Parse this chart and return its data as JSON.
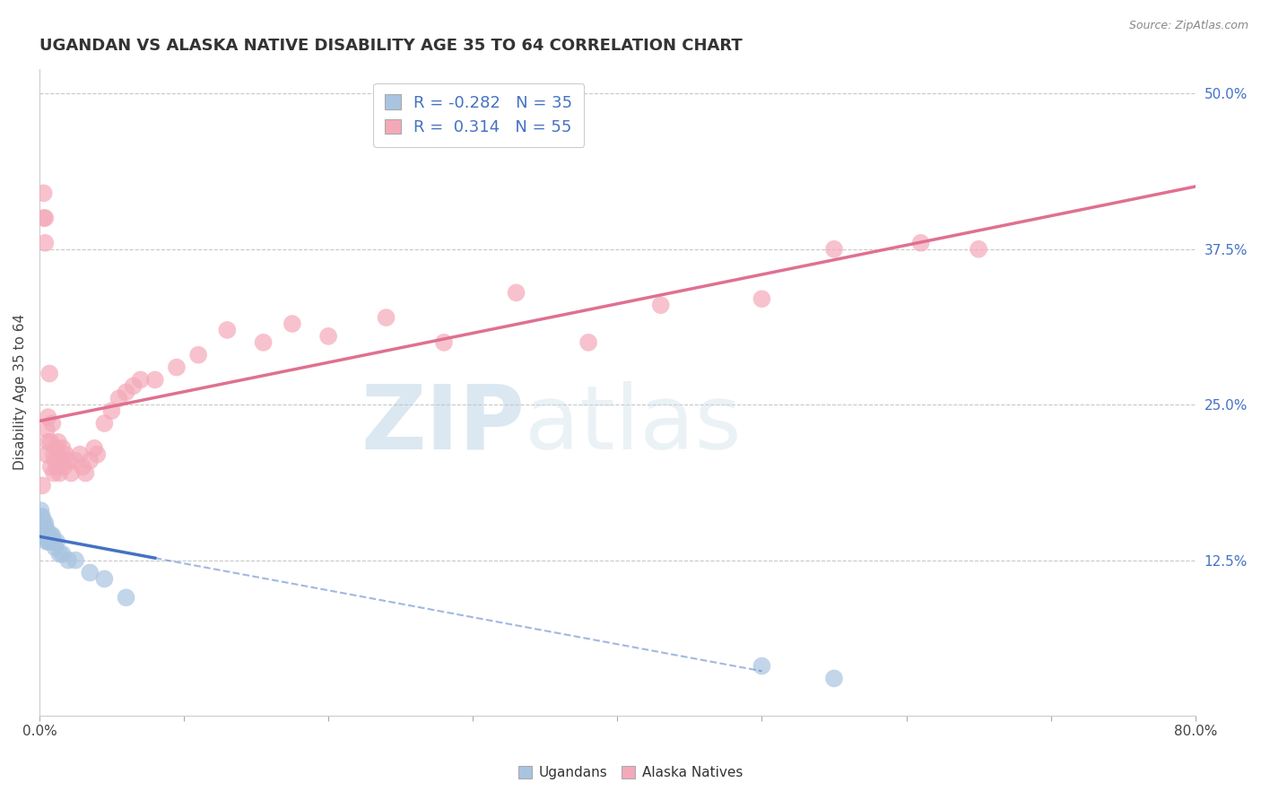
{
  "title": "UGANDAN VS ALASKA NATIVE DISABILITY AGE 35 TO 64 CORRELATION CHART",
  "source": "Source: ZipAtlas.com",
  "ylabel": "Disability Age 35 to 64",
  "xlim": [
    0.0,
    0.8
  ],
  "ylim": [
    0.0,
    0.52
  ],
  "xticks": [
    0.0,
    0.1,
    0.2,
    0.3,
    0.4,
    0.5,
    0.6,
    0.7,
    0.8
  ],
  "yticks_right": [
    0.125,
    0.25,
    0.375,
    0.5
  ],
  "ytick_right_labels": [
    "12.5%",
    "25.0%",
    "37.5%",
    "50.0%"
  ],
  "legend_r_ugandan": "-0.282",
  "legend_n_ugandan": "35",
  "legend_r_alaska": "0.314",
  "legend_n_alaska": "55",
  "ugandan_color": "#a8c4e0",
  "alaska_color": "#f4a9b8",
  "ugandan_line_color": "#4472c4",
  "alaska_line_color": "#e07090",
  "background_color": "#ffffff",
  "grid_color": "#c8c8c8",
  "ugandan_x": [
    0.001,
    0.001,
    0.001,
    0.002,
    0.002,
    0.002,
    0.002,
    0.003,
    0.003,
    0.003,
    0.004,
    0.004,
    0.004,
    0.005,
    0.005,
    0.005,
    0.006,
    0.006,
    0.007,
    0.007,
    0.008,
    0.008,
    0.009,
    0.01,
    0.011,
    0.012,
    0.014,
    0.016,
    0.02,
    0.025,
    0.035,
    0.045,
    0.06,
    0.5,
    0.55
  ],
  "ugandan_y": [
    0.165,
    0.16,
    0.155,
    0.16,
    0.155,
    0.15,
    0.145,
    0.155,
    0.15,
    0.145,
    0.155,
    0.15,
    0.145,
    0.15,
    0.145,
    0.14,
    0.145,
    0.14,
    0.145,
    0.14,
    0.145,
    0.14,
    0.145,
    0.14,
    0.135,
    0.14,
    0.13,
    0.13,
    0.125,
    0.125,
    0.115,
    0.11,
    0.095,
    0.04,
    0.03
  ],
  "alaska_x": [
    0.002,
    0.003,
    0.003,
    0.004,
    0.004,
    0.005,
    0.005,
    0.006,
    0.006,
    0.007,
    0.008,
    0.008,
    0.009,
    0.01,
    0.01,
    0.011,
    0.012,
    0.012,
    0.013,
    0.014,
    0.015,
    0.016,
    0.017,
    0.018,
    0.02,
    0.022,
    0.025,
    0.028,
    0.03,
    0.032,
    0.035,
    0.038,
    0.04,
    0.045,
    0.05,
    0.055,
    0.06,
    0.065,
    0.07,
    0.08,
    0.095,
    0.11,
    0.13,
    0.155,
    0.175,
    0.2,
    0.24,
    0.28,
    0.33,
    0.38,
    0.43,
    0.5,
    0.55,
    0.61,
    0.65
  ],
  "alaska_y": [
    0.185,
    0.4,
    0.42,
    0.38,
    0.4,
    0.21,
    0.23,
    0.22,
    0.24,
    0.275,
    0.2,
    0.22,
    0.235,
    0.195,
    0.21,
    0.205,
    0.2,
    0.215,
    0.22,
    0.195,
    0.205,
    0.215,
    0.2,
    0.21,
    0.205,
    0.195,
    0.205,
    0.21,
    0.2,
    0.195,
    0.205,
    0.215,
    0.21,
    0.235,
    0.245,
    0.255,
    0.26,
    0.265,
    0.27,
    0.27,
    0.28,
    0.29,
    0.31,
    0.3,
    0.315,
    0.305,
    0.32,
    0.3,
    0.34,
    0.3,
    0.33,
    0.335,
    0.375,
    0.38,
    0.375
  ]
}
